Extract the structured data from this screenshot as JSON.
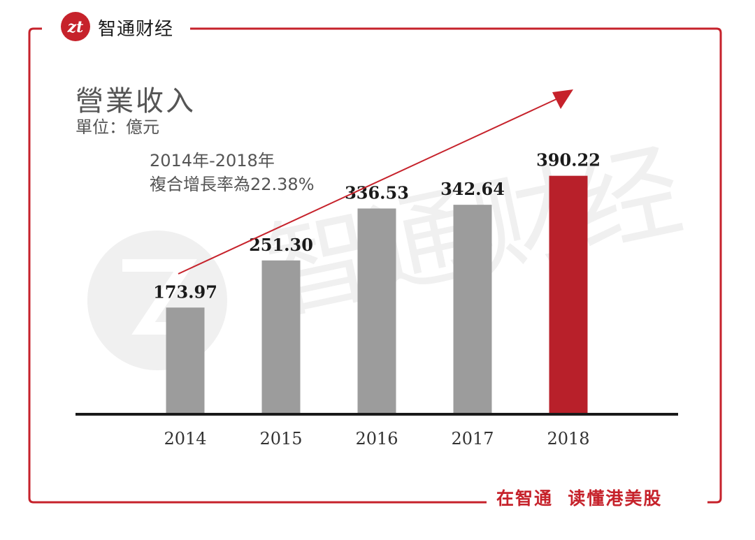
{
  "brand": {
    "name": "智通财经",
    "logo_text": "zt",
    "slogan": "在智通  读懂港美股"
  },
  "watermark": {
    "text": "智通财经"
  },
  "colors": {
    "accent": "#c6222b",
    "bar_default": "#9c9c9c",
    "bar_highlight": "#b8202a",
    "axis": "#1a1a1a",
    "arrow": "#c6222b"
  },
  "chart_data": {
    "type": "bar",
    "title": "營業收入",
    "unit_label": "單位：億元",
    "annotation": [
      "2014年-2018年",
      "複合增長率為22.38%"
    ],
    "categories": [
      "2014",
      "2015",
      "2016",
      "2017",
      "2018"
    ],
    "values": [
      173.97,
      251.3,
      336.53,
      342.64,
      390.22
    ],
    "value_labels": [
      "173.97",
      "251.30",
      "336.53",
      "342.64",
      "390.22"
    ],
    "highlight_index": 4,
    "ylim": [
      0,
      500
    ],
    "grid": false,
    "legend": "none",
    "trend_arrow": true
  }
}
